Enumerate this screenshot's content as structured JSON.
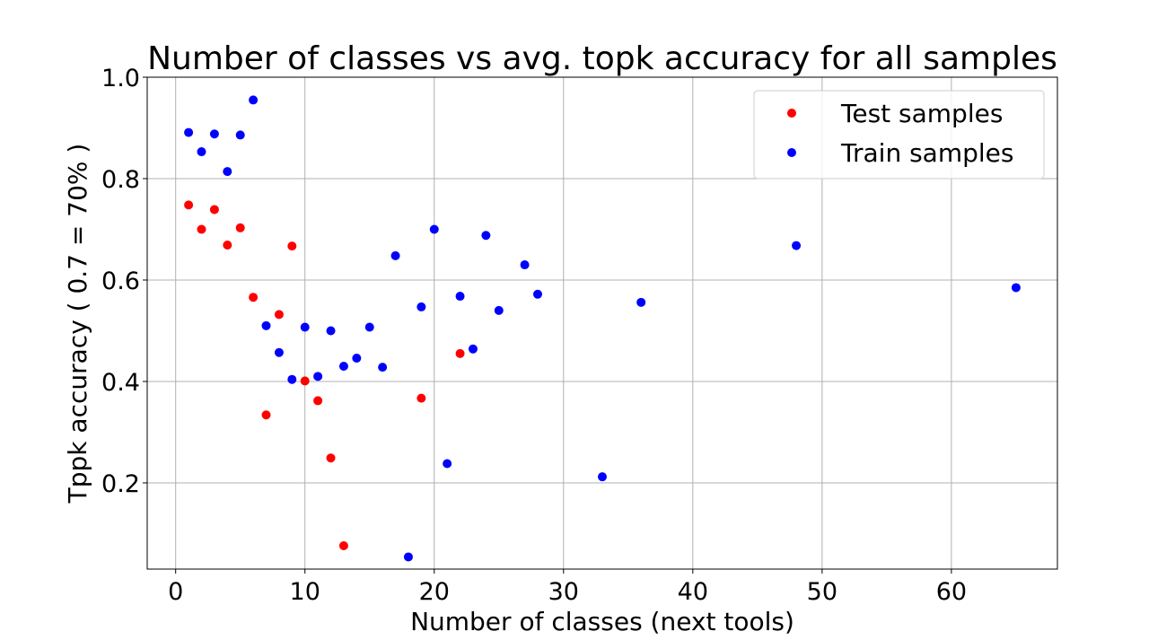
{
  "chart_data": {
    "type": "scatter",
    "title": "Number of classes vs avg. topk accuracy for all samples",
    "xlabel": "Number of classes (next tools)",
    "ylabel": "Tppk accuracy ( 0.7 = 70% )",
    "xlim": [
      -2.2,
      68.2
    ],
    "ylim": [
      0.03,
      1.0
    ],
    "xticks": [
      0,
      10,
      20,
      30,
      40,
      50,
      60
    ],
    "yticks": [
      0.2,
      0.4,
      0.6,
      0.8,
      1.0
    ],
    "xtick_labels": [
      "0",
      "10",
      "20",
      "30",
      "40",
      "50",
      "60"
    ],
    "ytick_labels": [
      "0.2",
      "0.4",
      "0.6",
      "0.8",
      "1.0"
    ],
    "grid": true,
    "legend_position": "top-right",
    "series": [
      {
        "name": "Test samples",
        "color": "#ff0000",
        "points": [
          [
            1,
            0.748
          ],
          [
            2,
            0.7
          ],
          [
            3,
            0.739
          ],
          [
            4,
            0.669
          ],
          [
            5,
            0.703
          ],
          [
            6,
            0.566
          ],
          [
            7,
            0.334
          ],
          [
            8,
            0.532
          ],
          [
            9,
            0.667
          ],
          [
            10,
            0.401
          ],
          [
            11,
            0.362
          ],
          [
            12,
            0.249
          ],
          [
            13,
            0.076
          ],
          [
            19,
            0.367
          ],
          [
            22,
            0.455
          ]
        ]
      },
      {
        "name": "Train samples",
        "color": "#0000ff",
        "points": [
          [
            1,
            0.891
          ],
          [
            2,
            0.853
          ],
          [
            3,
            0.888
          ],
          [
            4,
            0.814
          ],
          [
            5,
            0.886
          ],
          [
            6,
            0.955
          ],
          [
            7,
            0.51
          ],
          [
            8,
            0.457
          ],
          [
            9,
            0.404
          ],
          [
            10,
            0.507
          ],
          [
            11,
            0.41
          ],
          [
            12,
            0.5
          ],
          [
            13,
            0.43
          ],
          [
            14,
            0.446
          ],
          [
            15,
            0.507
          ],
          [
            16,
            0.428
          ],
          [
            17,
            0.648
          ],
          [
            18,
            0.054
          ],
          [
            19,
            0.547
          ],
          [
            20,
            0.7
          ],
          [
            21,
            0.238
          ],
          [
            22,
            0.568
          ],
          [
            23,
            0.464
          ],
          [
            24,
            0.688
          ],
          [
            25,
            0.54
          ],
          [
            27,
            0.63
          ],
          [
            28,
            0.572
          ],
          [
            33,
            0.212
          ],
          [
            36,
            0.556
          ],
          [
            48,
            0.668
          ],
          [
            65,
            0.585
          ]
        ]
      }
    ]
  }
}
